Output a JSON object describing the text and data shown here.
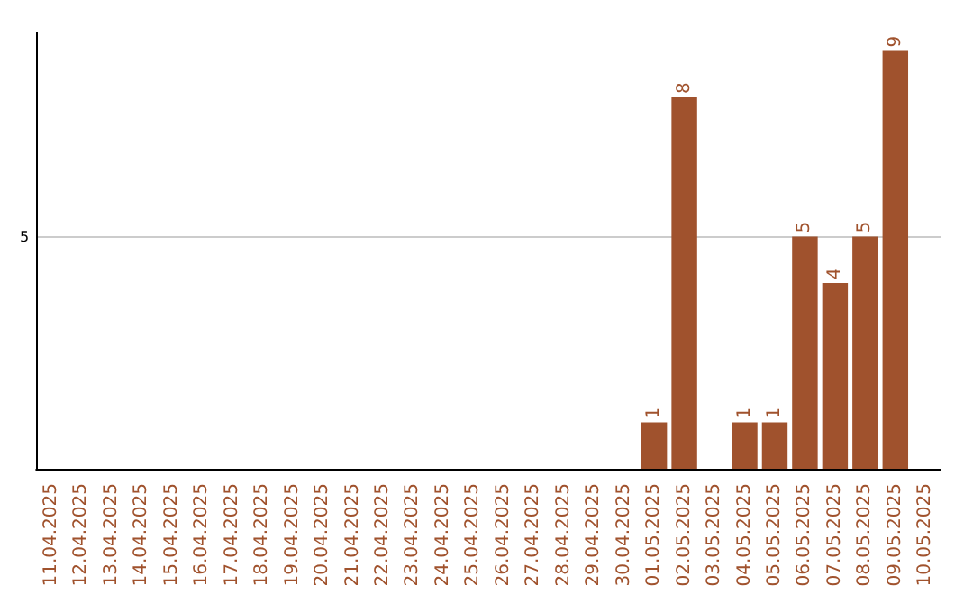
{
  "chart_data": {
    "type": "bar",
    "categories": [
      "11.04.2025",
      "12.04.2025",
      "13.04.2025",
      "14.04.2025",
      "15.04.2025",
      "16.04.2025",
      "17.04.2025",
      "18.04.2025",
      "19.04.2025",
      "20.04.2025",
      "21.04.2025",
      "22.04.2025",
      "23.04.2025",
      "24.04.2025",
      "25.04.2025",
      "26.04.2025",
      "27.04.2025",
      "28.04.2025",
      "29.04.2025",
      "30.04.2025",
      "01.05.2025",
      "02.05.2025",
      "03.05.2025",
      "04.05.2025",
      "05.05.2025",
      "06.05.2025",
      "07.05.2025",
      "08.05.2025",
      "09.05.2025",
      "10.05.2025"
    ],
    "values": [
      null,
      null,
      null,
      null,
      null,
      null,
      null,
      null,
      null,
      null,
      null,
      null,
      null,
      null,
      null,
      null,
      null,
      null,
      null,
      null,
      1,
      8,
      null,
      1,
      1,
      5,
      4,
      5,
      9,
      null
    ],
    "color": "#a0522d",
    "ylim": [
      0,
      9.4
    ],
    "yticks": [
      5
    ],
    "grid": "y",
    "data_labels": true
  }
}
